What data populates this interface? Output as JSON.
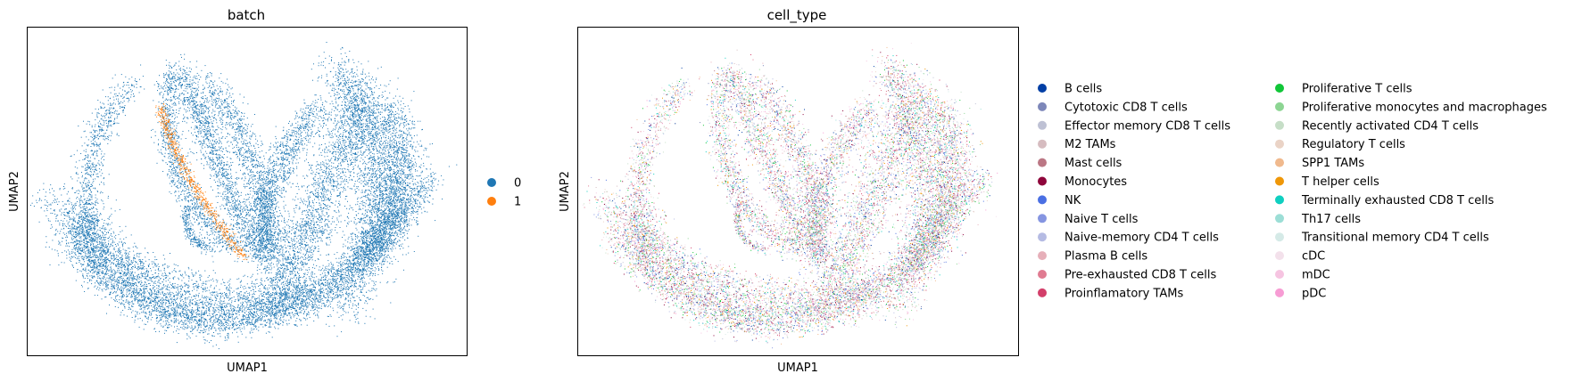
{
  "chart_data": [
    {
      "type": "scatter",
      "title": "batch",
      "xlabel": "UMAP1",
      "ylabel": "UMAP2",
      "grid": false,
      "ticks": false,
      "legend_placement": "right",
      "categories": [
        {
          "name": "0",
          "color": "#1f77b4"
        },
        {
          "name": "1",
          "color": "#ff7f0e"
        }
      ]
    },
    {
      "type": "scatter",
      "title": "cell_type",
      "xlabel": "UMAP1",
      "ylabel": "UMAP2",
      "grid": false,
      "ticks": false,
      "legend_placement": "right",
      "categories": [
        {
          "name": "B cells",
          "color": "#023fa5"
        },
        {
          "name": "Cytotoxic CD8 T cells",
          "color": "#7d87b9"
        },
        {
          "name": "Effector memory CD8 T cells",
          "color": "#bec1d4"
        },
        {
          "name": "M2 TAMs",
          "color": "#d6bcc0"
        },
        {
          "name": "Mast cells",
          "color": "#bb7784"
        },
        {
          "name": "Monocytes",
          "color": "#8e063b"
        },
        {
          "name": "NK",
          "color": "#4a6fe3"
        },
        {
          "name": "Naive T cells",
          "color": "#8595e1"
        },
        {
          "name": "Naive-memory CD4 T cells",
          "color": "#b5bbe3"
        },
        {
          "name": "Plasma B cells",
          "color": "#e6afb9"
        },
        {
          "name": "Pre-exhausted CD8 T cells",
          "color": "#e07b91"
        },
        {
          "name": "Proinflamatory TAMs",
          "color": "#d33f6a"
        },
        {
          "name": "Proliferative T cells",
          "color": "#11c638"
        },
        {
          "name": "Proliferative monocytes and macrophages",
          "color": "#8dd593"
        },
        {
          "name": "Recently activated CD4 T cells",
          "color": "#c6dec7"
        },
        {
          "name": "Regulatory T cells",
          "color": "#ead3c6"
        },
        {
          "name": "SPP1 TAMs",
          "color": "#f0b98d"
        },
        {
          "name": "T helper cells",
          "color": "#ef9708"
        },
        {
          "name": "Terminally exhausted CD8 T cells",
          "color": "#0fcfc0"
        },
        {
          "name": "Th17 cells",
          "color": "#9cded6"
        },
        {
          "name": "Transitional memory CD4 T cells",
          "color": "#d5eae7"
        },
        {
          "name": "cDC",
          "color": "#f3e1eb"
        },
        {
          "name": "mDC",
          "color": "#f6c4e1"
        },
        {
          "name": "pDC",
          "color": "#f79cd4"
        }
      ]
    }
  ]
}
